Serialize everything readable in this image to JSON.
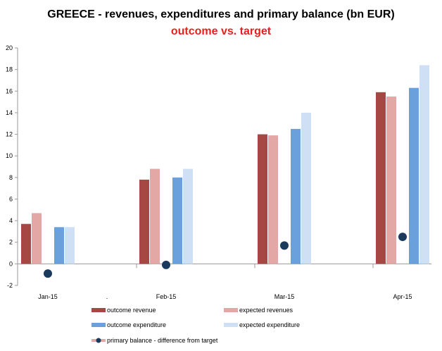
{
  "chart_data": {
    "type": "bar",
    "title": "GREECE - revenues, expenditures and primary balance (bn EUR)",
    "subtitle": "outcome vs. target",
    "categories": [
      "Jan-15",
      "Feb-15",
      "Mar-15",
      "Apr-15"
    ],
    "extra_category_label": ".",
    "ylim": [
      -2,
      20
    ],
    "yticks": [
      -2,
      0,
      2,
      4,
      6,
      8,
      10,
      12,
      14,
      16,
      18,
      20
    ],
    "grid": false,
    "legend_position": "bottom",
    "series": [
      {
        "name": "outcome revenue",
        "type": "bar",
        "color": "#a64744",
        "values": [
          3.7,
          7.8,
          12.0,
          15.9
        ]
      },
      {
        "name": "expected revenues",
        "type": "bar",
        "color": "#e3a7a6",
        "values": [
          4.7,
          8.8,
          11.9,
          15.5
        ]
      },
      {
        "name": "outcome expenditure",
        "type": "bar",
        "color": "#6aa0dc",
        "values": [
          3.4,
          8.0,
          12.5,
          16.3
        ]
      },
      {
        "name": "expected expenditure",
        "type": "bar",
        "color": "#cfe0f5",
        "values": [
          3.4,
          8.8,
          14.0,
          18.4
        ]
      },
      {
        "name": "primary balance - difference from target",
        "type": "scatter",
        "color": "#1a3a5e",
        "values": [
          -0.9,
          -0.1,
          1.7,
          2.5
        ]
      }
    ]
  }
}
